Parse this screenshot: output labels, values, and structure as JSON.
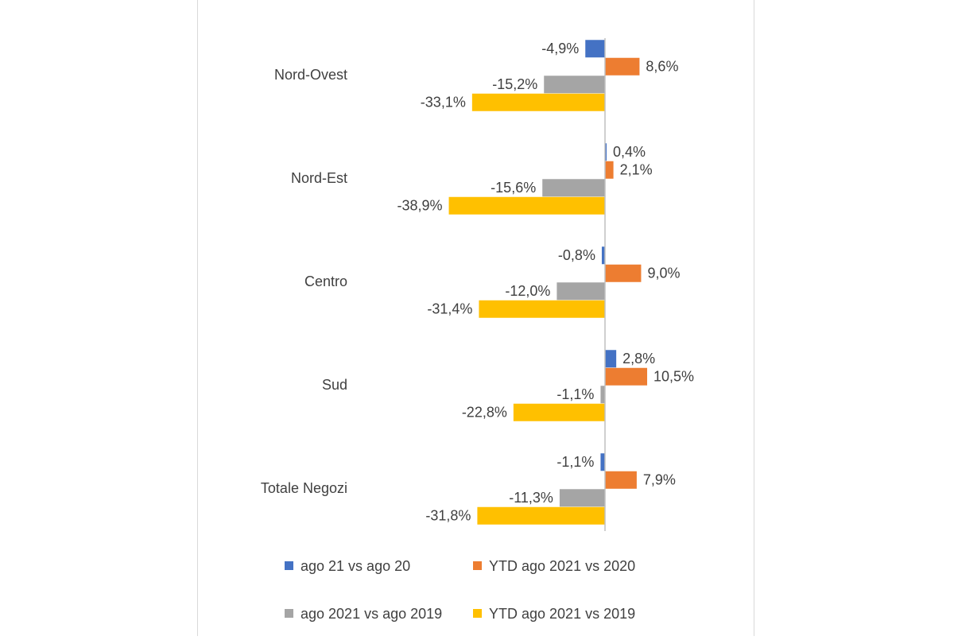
{
  "chart_data": {
    "type": "hbar",
    "categories": [
      "Nord-Ovest",
      "Nord-Est",
      "Centro",
      "Sud",
      "Totale Negozi"
    ],
    "series": [
      {
        "name": "ago 21 vs ago 20",
        "color": "#4472c4",
        "values": [
          -4.9,
          0.4,
          -0.8,
          2.8,
          -1.1
        ],
        "value_labels": [
          "-4,9%",
          "0,4%",
          "-0,8%",
          "2,8%",
          "-1,1%"
        ]
      },
      {
        "name": "YTD ago 2021 vs 2020",
        "color": "#ed7d31",
        "values": [
          8.6,
          2.1,
          9.0,
          10.5,
          7.9
        ],
        "value_labels": [
          "8,6%",
          "2,1%",
          "9,0%",
          "10,5%",
          "7,9%"
        ]
      },
      {
        "name": "ago 2021 vs ago 2019",
        "color": "#a5a5a5",
        "values": [
          -15.2,
          -15.6,
          -12.0,
          -1.1,
          -11.3
        ],
        "value_labels": [
          "-15,2%",
          "-15,6%",
          "-12,0%",
          "-1,1%",
          "-11,3%"
        ]
      },
      {
        "name": "YTD ago 2021 vs 2019",
        "color": "#ffc000",
        "values": [
          -33.1,
          -38.9,
          -31.4,
          -22.8,
          -31.8
        ],
        "value_labels": [
          "-33,1%",
          "-38,9%",
          "-31,4%",
          "-22,8%",
          "-31,8%"
        ]
      }
    ],
    "xlim": [
      -40,
      20
    ],
    "legend": "bottom"
  }
}
